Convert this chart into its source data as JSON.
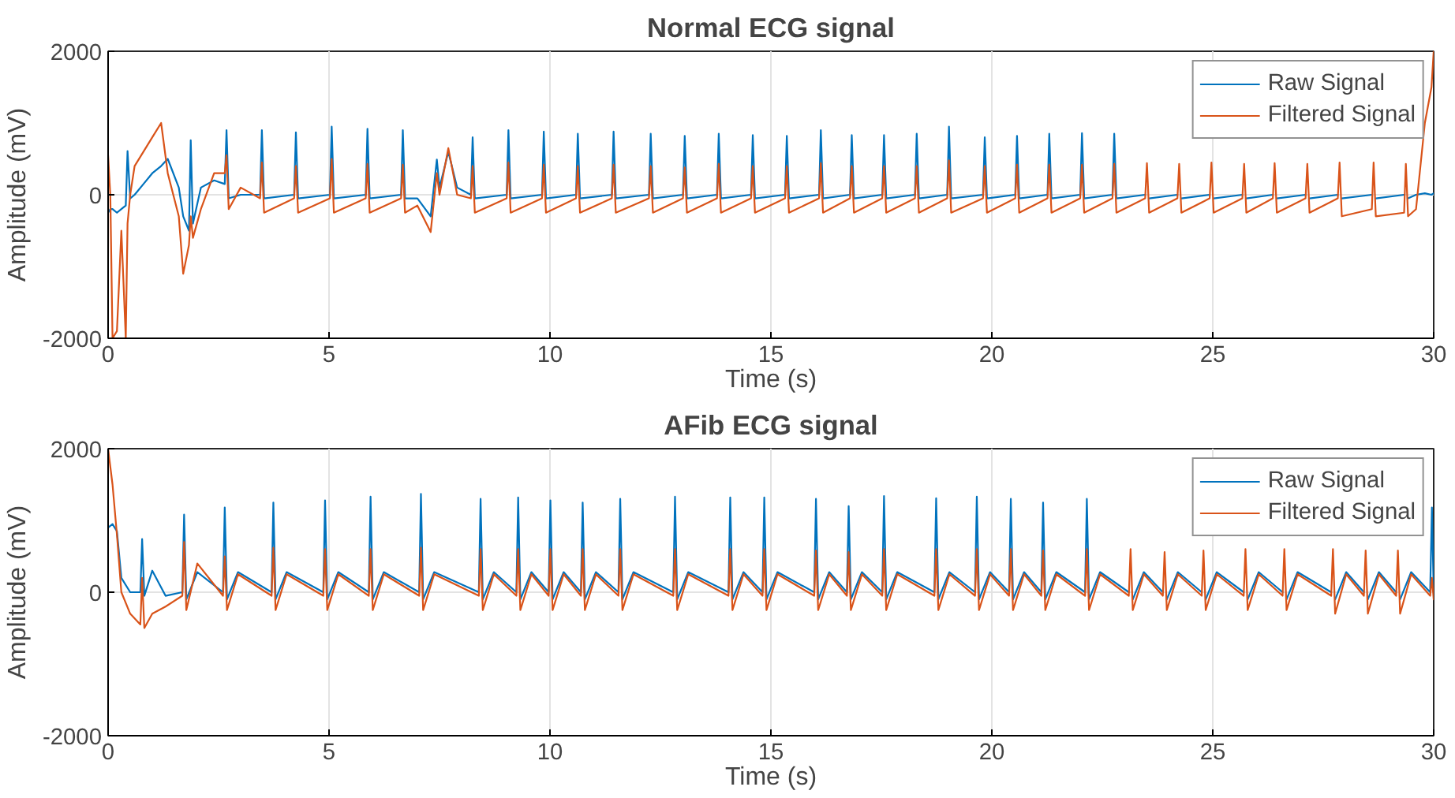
{
  "chart_data": [
    {
      "type": "line",
      "title": "Normal ECG signal",
      "xlabel": "Time (s)",
      "ylabel": "Amplitude (mV)",
      "xlim": [
        0,
        30
      ],
      "xticks": [
        0,
        5,
        10,
        15,
        20,
        25,
        30
      ],
      "ylim": [
        -2000,
        2000
      ],
      "yticks": [
        -2000,
        0,
        2000
      ],
      "grid": true,
      "legend": "top right",
      "x": [
        0,
        0.05,
        0.1,
        0.2,
        0.3,
        0.4,
        0.44,
        0.5,
        0.6,
        0.8,
        1.0,
        1.2,
        1.35,
        1.6,
        1.7,
        1.83,
        1.87,
        1.92,
        2.1,
        2.4,
        2.64,
        2.68,
        2.73,
        3.0,
        3.44,
        3.48,
        3.53,
        4.21,
        4.25,
        4.3,
        5.02,
        5.06,
        5.11,
        5.83,
        5.87,
        5.92,
        6.63,
        6.67,
        6.72,
        7.0,
        7.3,
        7.44,
        7.5,
        7.7,
        7.9,
        8.21,
        8.25,
        8.3,
        9.02,
        9.06,
        9.11,
        9.82,
        9.86,
        9.91,
        10.59,
        10.63,
        10.68,
        11.4,
        11.44,
        11.49,
        12.24,
        12.28,
        12.33,
        13.01,
        13.05,
        13.1,
        13.78,
        13.82,
        13.87,
        14.55,
        14.59,
        14.64,
        15.32,
        15.36,
        15.41,
        16.09,
        16.13,
        16.18,
        16.79,
        16.83,
        16.88,
        17.52,
        17.56,
        17.61,
        18.26,
        18.3,
        18.35,
        18.99,
        19.03,
        19.08,
        19.8,
        19.84,
        19.89,
        20.53,
        20.57,
        20.62,
        21.26,
        21.3,
        21.35,
        22.0,
        22.04,
        22.09,
        22.73,
        22.77,
        22.82,
        23.47,
        23.51,
        23.56,
        24.2,
        24.24,
        24.29,
        24.93,
        24.97,
        25.02,
        25.67,
        25.71,
        25.76,
        26.36,
        26.4,
        26.45,
        27.1,
        27.14,
        27.19,
        27.83,
        27.87,
        27.92,
        28.6,
        28.64,
        28.69,
        29.33,
        29.37,
        29.42,
        29.6,
        29.8,
        29.95,
        30
      ],
      "series": [
        {
          "name": "Raw Signal",
          "color": "#0072bd",
          "values": [
            -250,
            -200,
            -200,
            -250,
            -200,
            -150,
            610,
            -50,
            0,
            150,
            300,
            400,
            500,
            100,
            -300,
            -500,
            760,
            -400,
            100,
            200,
            150,
            900,
            -50,
            0,
            0,
            900,
            -50,
            0,
            870,
            -50,
            0,
            950,
            -50,
            0,
            920,
            -50,
            0,
            900,
            -50,
            -50,
            -300,
            490,
            100,
            600,
            100,
            0,
            800,
            -50,
            0,
            900,
            -50,
            0,
            880,
            -50,
            0,
            850,
            -50,
            0,
            880,
            -50,
            0,
            850,
            -50,
            0,
            820,
            -50,
            0,
            850,
            -50,
            0,
            830,
            -50,
            0,
            820,
            -50,
            0,
            900,
            -50,
            0,
            830,
            -50,
            0,
            830,
            -50,
            0,
            850,
            -50,
            0,
            950,
            -50,
            0,
            800,
            -50,
            0,
            820,
            -50,
            0,
            850,
            -50,
            0,
            860,
            -50,
            0,
            850,
            -50,
            0,
            null,
            -50,
            0,
            null,
            -50,
            0,
            null,
            -50,
            0,
            null,
            -50,
            0,
            null,
            -50,
            0,
            null,
            -50,
            0,
            null,
            -50,
            0,
            null,
            -50,
            0,
            null,
            -50,
            0,
            20,
            0,
            20
          ]
        },
        {
          "name": "Filtered Signal",
          "color": "#d95319",
          "values": [
            550,
            0,
            -2000,
            -1900,
            -500,
            -2000,
            -400,
            0,
            400,
            600,
            800,
            1000,
            300,
            -300,
            -1100,
            -700,
            -300,
            -600,
            -200,
            300,
            300,
            550,
            -200,
            100,
            -50,
            450,
            -250,
            -50,
            400,
            -250,
            -50,
            500,
            -250,
            -50,
            430,
            -250,
            -50,
            420,
            -250,
            -150,
            -520,
            300,
            0,
            650,
            0,
            -50,
            400,
            -250,
            -50,
            450,
            -250,
            -50,
            420,
            -250,
            -50,
            400,
            -250,
            -50,
            420,
            -250,
            -50,
            400,
            -250,
            -50,
            380,
            -250,
            -50,
            430,
            -250,
            -50,
            400,
            -250,
            -50,
            400,
            -250,
            -50,
            440,
            -250,
            -50,
            400,
            -250,
            -50,
            400,
            -250,
            -50,
            400,
            -250,
            -50,
            480,
            -250,
            -50,
            400,
            -250,
            -50,
            420,
            -250,
            -50,
            420,
            -250,
            -50,
            420,
            -250,
            -50,
            430,
            -250,
            -50,
            440,
            -250,
            -50,
            430,
            -250,
            -50,
            450,
            -250,
            -50,
            430,
            -250,
            -50,
            440,
            -250,
            -50,
            430,
            -250,
            -50,
            450,
            -300,
            -200,
            450,
            -300,
            -250,
            430,
            -300,
            -200,
            1000,
            1500,
            2000
          ]
        }
      ]
    },
    {
      "type": "line",
      "title": "AFib ECG signal",
      "xlabel": "Time (s)",
      "ylabel": "Amplitude (mV)",
      "xlim": [
        0,
        30
      ],
      "xticks": [
        0,
        5,
        10,
        15,
        20,
        25,
        30
      ],
      "ylim": [
        -2000,
        2000
      ],
      "yticks": [
        -2000,
        0,
        2000
      ],
      "grid": true,
      "legend": "top right",
      "x": [
        0,
        0.1,
        0.2,
        0.3,
        0.5,
        0.73,
        0.77,
        0.82,
        1.0,
        1.3,
        1.68,
        1.72,
        1.77,
        2.02,
        2.6,
        2.64,
        2.69,
        2.94,
        3.7,
        3.74,
        3.79,
        4.04,
        4.87,
        4.91,
        4.96,
        5.21,
        5.9,
        5.94,
        5.99,
        6.24,
        7.04,
        7.08,
        7.13,
        7.38,
        8.39,
        8.43,
        8.48,
        8.73,
        9.24,
        9.28,
        9.33,
        9.58,
        9.97,
        10.01,
        10.06,
        10.31,
        10.7,
        10.74,
        10.79,
        11.04,
        11.55,
        11.59,
        11.64,
        11.89,
        12.79,
        12.83,
        12.88,
        13.13,
        14.04,
        14.08,
        14.13,
        14.38,
        14.81,
        14.85,
        14.9,
        15.15,
        15.98,
        16.02,
        16.07,
        16.32,
        16.72,
        16.76,
        16.81,
        17.06,
        17.52,
        17.56,
        17.61,
        17.86,
        18.7,
        18.74,
        18.79,
        19.04,
        19.62,
        19.66,
        19.71,
        19.96,
        20.39,
        20.43,
        20.48,
        20.73,
        21.12,
        21.16,
        21.21,
        21.46,
        22.11,
        22.15,
        22.2,
        22.45,
        23.1,
        23.14,
        23.19,
        23.44,
        23.87,
        23.91,
        23.96,
        24.21,
        24.75,
        24.79,
        24.84,
        25.09,
        25.7,
        25.74,
        25.79,
        26.04,
        26.58,
        26.62,
        26.67,
        26.92,
        27.68,
        27.72,
        27.77,
        28.02,
        28.42,
        28.46,
        28.51,
        28.76,
        29.15,
        29.19,
        29.24,
        29.49,
        29.92,
        29.96,
        30
      ],
      "series": [
        {
          "name": "Raw Signal",
          "color": "#0072bd",
          "values": [
            900,
            950,
            850,
            200,
            0,
            0,
            740,
            -50,
            300,
            -50,
            0,
            1080,
            -100,
            280,
            0,
            1180,
            -100,
            280,
            0,
            1250,
            -100,
            280,
            0,
            1280,
            -100,
            280,
            0,
            1330,
            -100,
            280,
            0,
            1370,
            -100,
            280,
            0,
            1300,
            -100,
            280,
            0,
            1320,
            -100,
            280,
            0,
            1280,
            -100,
            280,
            0,
            1250,
            -100,
            280,
            0,
            1300,
            -100,
            280,
            0,
            1330,
            -100,
            280,
            0,
            1320,
            -100,
            280,
            0,
            1320,
            -100,
            280,
            0,
            1300,
            -100,
            280,
            0,
            1200,
            -100,
            280,
            0,
            1340,
            -100,
            280,
            0,
            1310,
            -100,
            280,
            0,
            1330,
            -100,
            280,
            0,
            1300,
            -100,
            280,
            0,
            1250,
            -100,
            280,
            0,
            1300,
            -100,
            280,
            0,
            null,
            -100,
            280,
            0,
            null,
            -100,
            280,
            0,
            null,
            -100,
            280,
            0,
            null,
            -100,
            280,
            0,
            null,
            -100,
            280,
            0,
            null,
            -100,
            280,
            0,
            null,
            -100,
            280,
            0,
            null,
            -100,
            280,
            0,
            1180,
            0
          ]
        },
        {
          "name": "Filtered Signal",
          "color": "#d95319",
          "values": [
            2000,
            1500,
            800,
            0,
            -300,
            -450,
            200,
            -500,
            -300,
            -200,
            -50,
            700,
            -250,
            400,
            -50,
            500,
            -250,
            250,
            -50,
            620,
            -250,
            250,
            -50,
            600,
            -250,
            250,
            -50,
            600,
            -250,
            250,
            -50,
            620,
            -250,
            250,
            -50,
            600,
            -250,
            250,
            -50,
            600,
            -250,
            250,
            -50,
            600,
            -250,
            250,
            -50,
            600,
            -250,
            250,
            -50,
            600,
            -250,
            250,
            -50,
            600,
            -250,
            250,
            -50,
            600,
            -250,
            250,
            -50,
            600,
            -250,
            250,
            -50,
            580,
            -250,
            250,
            -50,
            560,
            -250,
            250,
            -50,
            600,
            -250,
            250,
            -50,
            600,
            -250,
            250,
            -50,
            600,
            -250,
            250,
            -50,
            600,
            -250,
            250,
            -50,
            580,
            -250,
            250,
            -50,
            600,
            -250,
            250,
            -50,
            600,
            -250,
            250,
            -50,
            560,
            -250,
            250,
            -50,
            580,
            -250,
            250,
            -50,
            600,
            -250,
            250,
            -50,
            600,
            -250,
            250,
            -50,
            600,
            -300,
            250,
            -50,
            580,
            -300,
            250,
            -50,
            580,
            -300,
            250,
            -50,
            200,
            -100
          ]
        }
      ]
    }
  ]
}
